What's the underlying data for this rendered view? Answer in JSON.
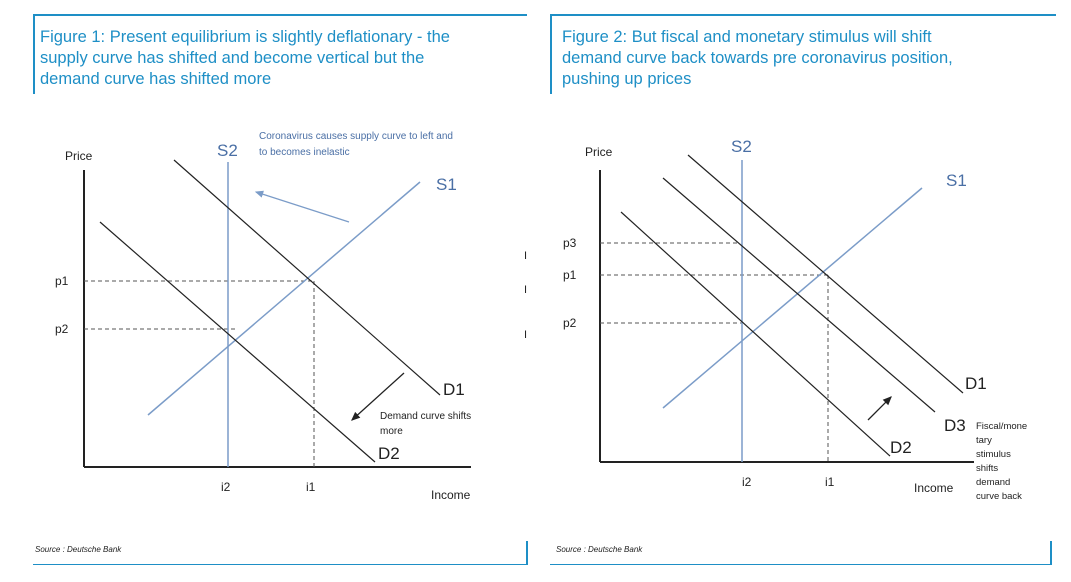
{
  "figure1": {
    "caption_line1": "Figure 1: Present equilibrium is slightly deflationary - the",
    "caption_line2": "supply curve has shifted and become vertical but the",
    "caption_line3": "demand curve has shifted more",
    "source": "Source : Deutsche Bank",
    "axis_y_label": "Price",
    "axis_x_label": "Income",
    "labels": {
      "p1": "p1",
      "p2": "p2",
      "i2": "i2",
      "i1": "i1",
      "S1": "S1",
      "S2": "S2",
      "D1": "D1",
      "D2": "D2"
    },
    "annotation_supply_line1": "Coronavirus causes supply curve to left and",
    "annotation_supply_line2": "to becomes inelastic",
    "annotation_demand_line1": "Demand curve shifts",
    "annotation_demand_line2": "more",
    "stray_marks": [
      "I",
      "I",
      "I"
    ]
  },
  "figure2": {
    "caption_line1": "Figure 2: But fiscal and monetary stimulus will shift",
    "caption_line2": "demand curve back towards pre coronavirus position,",
    "caption_line3": "pushing up prices",
    "source": "Source : Deutsche Bank",
    "axis_y_label": "Price",
    "axis_x_label": "Income",
    "labels": {
      "p3": "p3",
      "p1": "p1",
      "p2": "p2",
      "i2": "i2",
      "i1": "i1",
      "S1": "S1",
      "S2": "S2",
      "D1": "D1",
      "D2": "D2",
      "D3": "D3"
    },
    "annotation_lines": [
      "Fiscal/mone",
      "tary",
      "stimulus",
      "shifts",
      "demand",
      "curve back"
    ]
  },
  "colors": {
    "accent": "#1e8fc6",
    "supply_curve": "#7b9cc8",
    "annotation_text": "#4a6fa5",
    "demand_curve": "#222222"
  }
}
